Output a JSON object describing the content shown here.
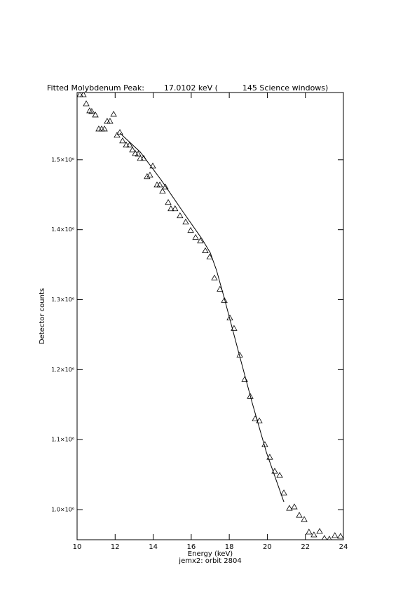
{
  "chart_data": {
    "type": "scatter",
    "title": "Fitted Molybdenum Peak:        17.0102 keV (          145 Science windows)",
    "x_label": "Energy (keV)",
    "subtitle": "jemx2: orbit 2804",
    "y_label": "Detector counts",
    "xlim": [
      10,
      24
    ],
    "xticks": [
      10,
      12,
      14,
      16,
      18,
      20,
      22,
      24
    ],
    "ylim": [
      957000,
      1596000
    ],
    "yticks": [
      {
        "value": 1000000,
        "label": "1.0×10⁶"
      },
      {
        "value": 1100000,
        "label": "1.1×10⁶"
      },
      {
        "value": 1200000,
        "label": "1.2×10⁶"
      },
      {
        "value": 1300000,
        "label": "1.3×10⁶"
      },
      {
        "value": 1400000,
        "label": "1.4×10⁶"
      },
      {
        "value": 1500000,
        "label": "1.5×10⁶"
      }
    ],
    "series": [
      {
        "name": "data",
        "color": "#000000",
        "marker": "triangle",
        "x": [
          10.15,
          10.33,
          10.48,
          10.66,
          10.77,
          10.96,
          11.14,
          11.29,
          11.44,
          11.58,
          11.73,
          11.92,
          12.1,
          12.25,
          12.39,
          12.58,
          12.76,
          12.91,
          13.06,
          13.21,
          13.32,
          13.5,
          13.68,
          13.83,
          13.98,
          14.2,
          14.35,
          14.49,
          14.64,
          14.79,
          14.93,
          15.15,
          15.41,
          15.71,
          15.97,
          16.23,
          16.48,
          16.74,
          16.97,
          17.22,
          17.51,
          17.74,
          18.03,
          18.25,
          18.55,
          18.81,
          19.1,
          19.36,
          19.58,
          19.87,
          20.13,
          20.39,
          20.65,
          20.87,
          21.16,
          21.42,
          21.68,
          21.94,
          22.19,
          22.45,
          22.75,
          23.0,
          23.26,
          23.55,
          23.85
        ],
        "values": [
          1593000,
          1593000,
          1580000,
          1570000,
          1569000,
          1564000,
          1544000,
          1544000,
          1544000,
          1555000,
          1555000,
          1565000,
          1535000,
          1539000,
          1527000,
          1521000,
          1521000,
          1514000,
          1509000,
          1508000,
          1502000,
          1502000,
          1476000,
          1478000,
          1491000,
          1464000,
          1464000,
          1455000,
          1461000,
          1439000,
          1430000,
          1430000,
          1420000,
          1411000,
          1399000,
          1389000,
          1384000,
          1370000,
          1361000,
          1331000,
          1315000,
          1299000,
          1274000,
          1259000,
          1221000,
          1186000,
          1162000,
          1130000,
          1127000,
          1093000,
          1075000,
          1055000,
          1049000,
          1024000,
          1002000,
          1004000,
          992000,
          986000,
          968000,
          964000,
          969000,
          959000,
          958000,
          963000,
          962000
        ]
      },
      {
        "name": "fit",
        "color": "#000000",
        "marker": "line",
        "x": [
          12.25,
          13.32,
          14.42,
          15.53,
          16.56,
          17.0,
          17.33,
          17.74,
          18.47,
          19.21,
          19.95,
          20.87
        ],
        "values": [
          1538000,
          1511000,
          1471000,
          1427000,
          1387000,
          1367000,
          1342000,
          1302000,
          1227000,
          1152000,
          1082000,
          1011000
        ]
      }
    ]
  }
}
